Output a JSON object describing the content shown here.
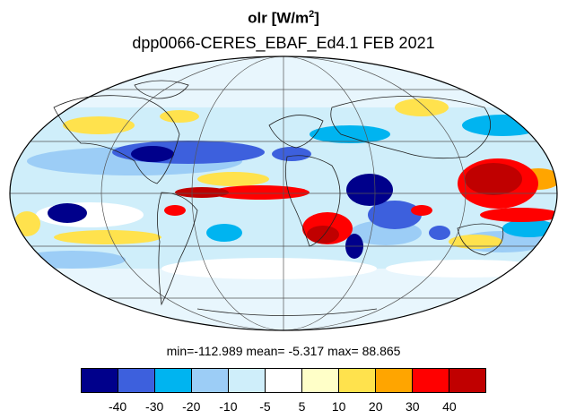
{
  "title": {
    "var": "olr",
    "units_prefix": "[W/m",
    "units_exp": "2",
    "units_suffix": "]"
  },
  "subtitle": "dpp0066-CERES_EBAF_Ed4.1  FEB 2021",
  "stats": {
    "text": "min=-112.989   mean=  -5.317   max=  88.865"
  },
  "colorbar": {
    "colors": [
      "#00008b",
      "#3d60dd",
      "#00b4f0",
      "#9ccdf6",
      "#cfeefa",
      "#ffffff",
      "#ffffc8",
      "#ffe24d",
      "#ffa500",
      "#ff0000",
      "#c00000"
    ],
    "labels": [
      "-40",
      "-30",
      "-20",
      "-10",
      "-5",
      "5",
      "10",
      "20",
      "30",
      "40"
    ]
  }
}
